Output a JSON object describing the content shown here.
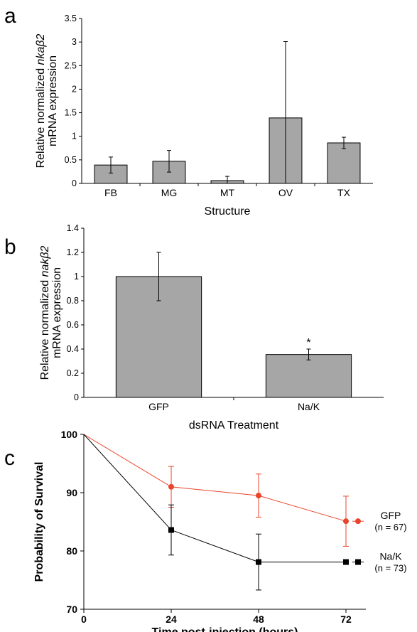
{
  "panels": [
    {
      "letter": "a"
    },
    {
      "letter": "b"
    },
    {
      "letter": "c"
    }
  ],
  "chart_data": [
    {
      "type": "bar",
      "panel": "a",
      "categories": [
        "FB",
        "MG",
        "MT",
        "OV",
        "TX"
      ],
      "values": [
        0.39,
        0.47,
        0.06,
        1.39,
        0.86
      ],
      "errors": [
        0.17,
        0.23,
        0.09,
        1.62,
        0.12
      ],
      "ylim": [
        0,
        3.5
      ],
      "yticks": [
        0,
        0.5,
        1,
        1.5,
        2,
        2.5,
        3,
        3.5
      ],
      "ytick_labels": [
        "0",
        "0.5",
        "1",
        "1.5",
        "2",
        "2.5",
        "3",
        "3.5"
      ],
      "ylabel_pre": "Relative normalized ",
      "ylabel_gene": "nkaβ2",
      "ylabel_line2": "mRNA expression",
      "xlabel": "Structure",
      "bar_color": "#a6a6a6"
    },
    {
      "type": "bar",
      "panel": "b",
      "categories": [
        "GFP",
        "Na/K"
      ],
      "values": [
        1.0,
        0.355
      ],
      "errors": [
        0.2,
        0.045
      ],
      "ylim": [
        0,
        1.4
      ],
      "yticks": [
        0,
        0.2,
        0.4,
        0.6,
        0.8,
        1,
        1.2,
        1.4
      ],
      "ytick_labels": [
        "0",
        "0.2",
        "0.4",
        "0.6",
        "0.8",
        "1",
        "1.2",
        "1.4"
      ],
      "ylabel_pre": "Relative normalized ",
      "ylabel_gene": "nakβ2",
      "ylabel_line2": "mRNA expression",
      "xlabel": "dsRNA Treatment",
      "annotations": [
        {
          "category": "Na/K",
          "text": "*"
        }
      ],
      "bar_color": "#a6a6a6"
    },
    {
      "type": "line",
      "panel": "c",
      "x": [
        0,
        24,
        48,
        72
      ],
      "xticks": [
        0,
        24,
        48,
        72
      ],
      "xtick_labels": [
        "0",
        "24",
        "48",
        "72"
      ],
      "xlim": [
        0,
        72
      ],
      "ylim": [
        70,
        100
      ],
      "yticks": [
        70,
        80,
        90,
        100
      ],
      "ytick_labels": [
        "70",
        "80",
        "90",
        "100"
      ],
      "xlabel": "Time post-injection (hours)",
      "ylabel": "Probability of Survival",
      "series": [
        {
          "name": "GFP",
          "n_label": "(n = 67)",
          "color": "#e8452c",
          "marker": "circle",
          "values": [
            100,
            91.0,
            89.5,
            85.1
          ],
          "errors": [
            0,
            3.5,
            3.7,
            4.3
          ]
        },
        {
          "name": "Na/K",
          "n_label": "(n = 73)",
          "color": "#000000",
          "marker": "square",
          "values": [
            100,
            83.6,
            78.1,
            78.1
          ],
          "errors": [
            0,
            4.3,
            4.8,
            0
          ]
        }
      ]
    }
  ]
}
